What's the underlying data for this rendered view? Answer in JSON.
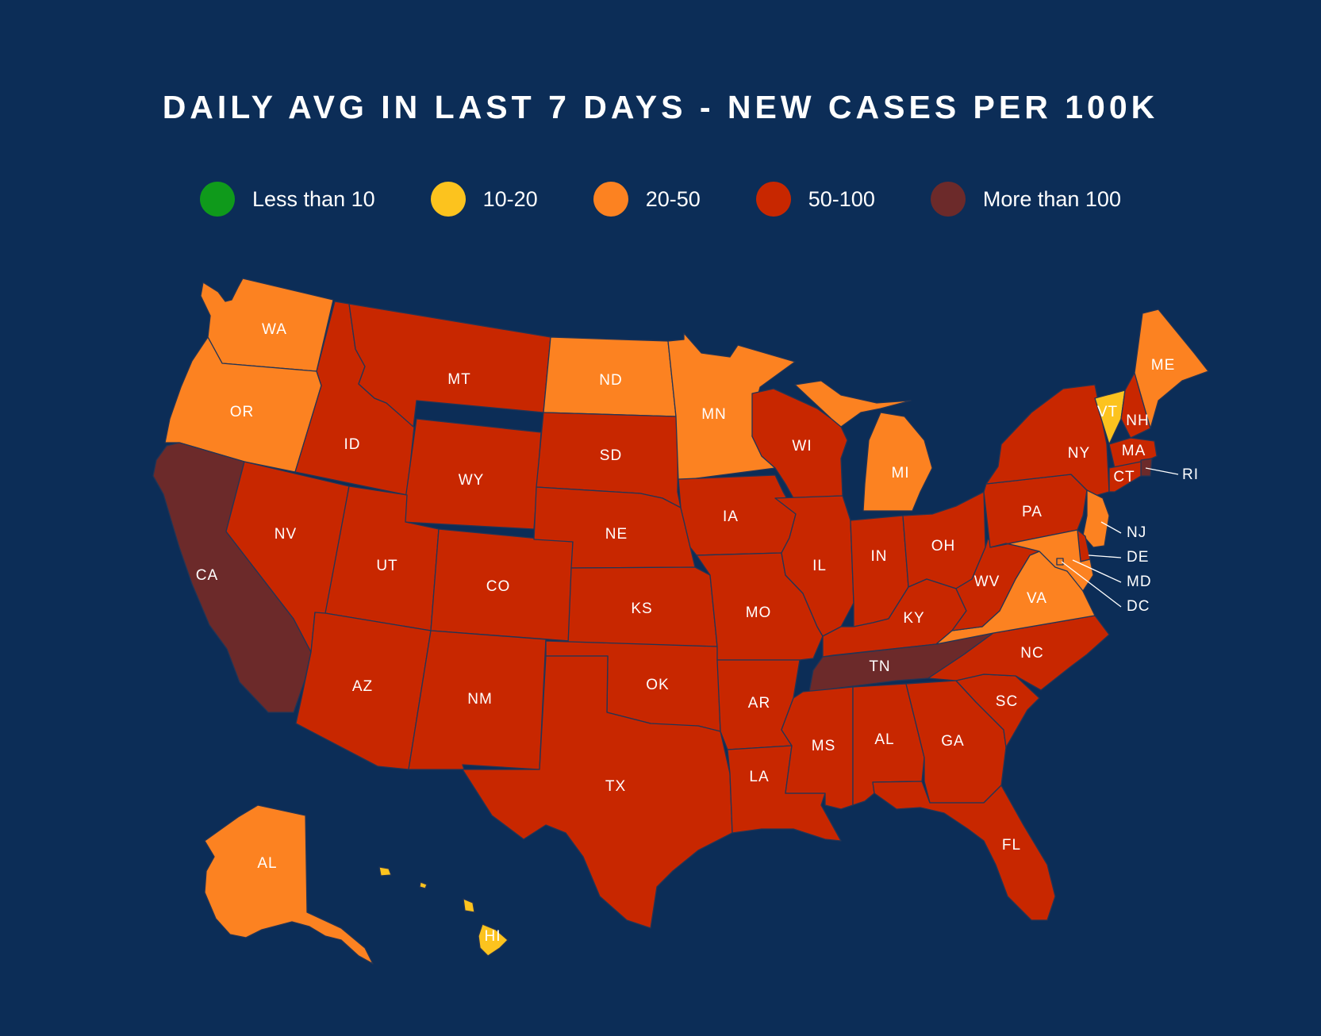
{
  "title": "DAILY AVG IN LAST 7 DAYS - NEW CASES PER 100K",
  "legend": [
    {
      "label": "Less than 10",
      "color": "#0f9a1b"
    },
    {
      "label": "10-20",
      "color": "#fcc31e"
    },
    {
      "label": "20-50",
      "color": "#fc8221"
    },
    {
      "label": "50-100",
      "color": "#c82700"
    },
    {
      "label": "More than 100",
      "color": "#6c2a2a"
    }
  ],
  "states": {
    "WA": {
      "label": "WA",
      "category": "20-50"
    },
    "OR": {
      "label": "OR",
      "category": "20-50"
    },
    "CA": {
      "label": "CA",
      "category": "More than 100"
    },
    "ID": {
      "label": "ID",
      "category": "50-100"
    },
    "NV": {
      "label": "NV",
      "category": "50-100"
    },
    "MT": {
      "label": "MT",
      "category": "50-100"
    },
    "WY": {
      "label": "WY",
      "category": "50-100"
    },
    "UT": {
      "label": "UT",
      "category": "50-100"
    },
    "AZ": {
      "label": "AZ",
      "category": "50-100"
    },
    "CO": {
      "label": "CO",
      "category": "50-100"
    },
    "NM": {
      "label": "NM",
      "category": "50-100"
    },
    "ND": {
      "label": "ND",
      "category": "20-50"
    },
    "SD": {
      "label": "SD",
      "category": "50-100"
    },
    "NE": {
      "label": "NE",
      "category": "50-100"
    },
    "KS": {
      "label": "KS",
      "category": "50-100"
    },
    "OK": {
      "label": "OK",
      "category": "50-100"
    },
    "TX": {
      "label": "TX",
      "category": "50-100"
    },
    "MN": {
      "label": "MN",
      "category": "20-50"
    },
    "IA": {
      "label": "IA",
      "category": "50-100"
    },
    "MO": {
      "label": "MO",
      "category": "50-100"
    },
    "AR": {
      "label": "AR",
      "category": "50-100"
    },
    "LA": {
      "label": "LA",
      "category": "50-100"
    },
    "WI": {
      "label": "WI",
      "category": "50-100"
    },
    "IL": {
      "label": "IL",
      "category": "50-100"
    },
    "MI": {
      "label": "MI",
      "category": "20-50"
    },
    "IN": {
      "label": "IN",
      "category": "50-100"
    },
    "OH": {
      "label": "OH",
      "category": "50-100"
    },
    "KY": {
      "label": "KY",
      "category": "50-100"
    },
    "TN": {
      "label": "TN",
      "category": "More than 100"
    },
    "MS": {
      "label": "MS",
      "category": "50-100"
    },
    "AL": {
      "label": "AL",
      "category": "50-100"
    },
    "GA": {
      "label": "GA",
      "category": "50-100"
    },
    "FL": {
      "label": "FL",
      "category": "50-100"
    },
    "SC": {
      "label": "SC",
      "category": "50-100"
    },
    "NC": {
      "label": "NC",
      "category": "50-100"
    },
    "VA": {
      "label": "VA",
      "category": "20-50"
    },
    "WV": {
      "label": "WV",
      "category": "50-100"
    },
    "PA": {
      "label": "PA",
      "category": "50-100"
    },
    "NY": {
      "label": "NY",
      "category": "50-100"
    },
    "VT": {
      "label": "VT",
      "category": "10-20"
    },
    "NH": {
      "label": "NH",
      "category": "50-100"
    },
    "ME": {
      "label": "ME",
      "category": "20-50"
    },
    "MA": {
      "label": "MA",
      "category": "50-100"
    },
    "RI": {
      "label": "RI",
      "category": "More than 100"
    },
    "CT": {
      "label": "CT",
      "category": "50-100"
    },
    "NJ": {
      "label": "NJ",
      "category": "20-50"
    },
    "DE": {
      "label": "DE",
      "category": "50-100"
    },
    "MD": {
      "label": "MD",
      "category": "20-50"
    },
    "DC": {
      "label": "DC",
      "category": "20-50"
    },
    "AK": {
      "label": "AL",
      "category": "20-50"
    },
    "HI": {
      "label": "HI",
      "category": "10-20"
    }
  }
}
